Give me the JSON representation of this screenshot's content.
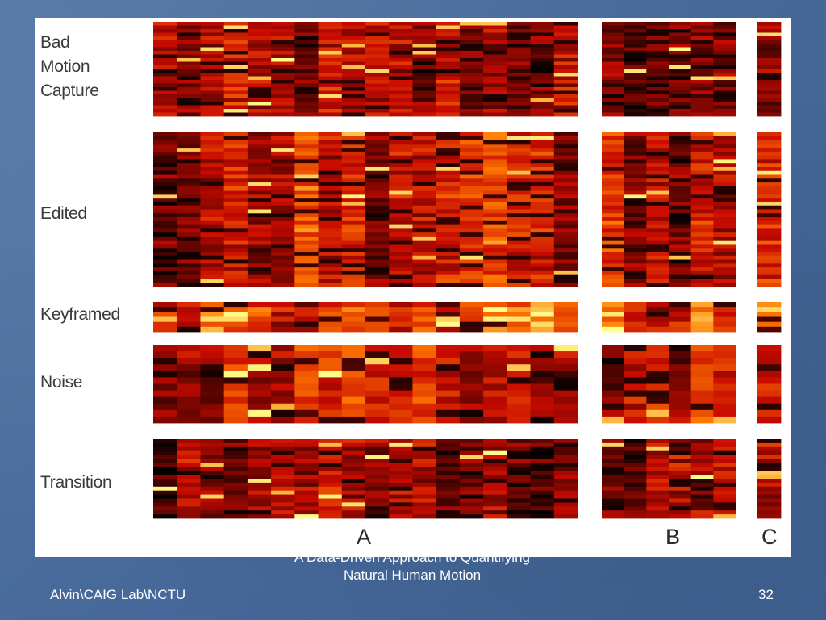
{
  "slide": {
    "footer_left": "Alvin\\CAIG Lab\\NCTU",
    "footer_title": "A Data-Driven Approach to Quantifying Natural Human Motion",
    "page_number": "32"
  },
  "figure": {
    "row_labels": [
      "Bad\nMotion\nCapture",
      "Edited",
      "Keyframed",
      "Noise",
      "Transition"
    ],
    "column_labels": [
      "A",
      "B",
      "C"
    ]
  },
  "colors": {
    "background_blue": "#4a6e9e",
    "heat_low": "#000000",
    "heat_mid": "#c81a00",
    "heat_high": "#ffff80"
  }
}
